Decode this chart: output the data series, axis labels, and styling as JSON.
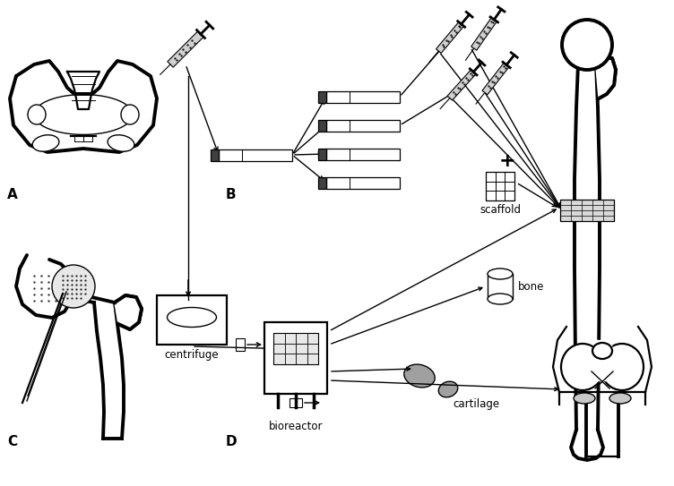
{
  "fig_width": 7.52,
  "fig_height": 5.43,
  "dpi": 100,
  "bg_color": "#ffffff",
  "lc": "#000000",
  "gray_light": "#d0d0d0",
  "gray_med": "#a0a0a0",
  "gray_dark": "#606060",
  "label_fontsize": 11,
  "annot_fontsize": 8.5,
  "lw_thick": 2.8,
  "lw_med": 1.6,
  "lw_thin": 1.0,
  "lw_hair": 0.7,
  "text_scaffold": "scaffold",
  "text_bone": "bone",
  "text_cartilage": "cartilage",
  "text_centrifuge": "centrifuge",
  "text_bioreactor": "bioreactor",
  "text_plus": "+",
  "label_A": "A",
  "label_B": "B",
  "label_C": "C",
  "label_D": "D"
}
